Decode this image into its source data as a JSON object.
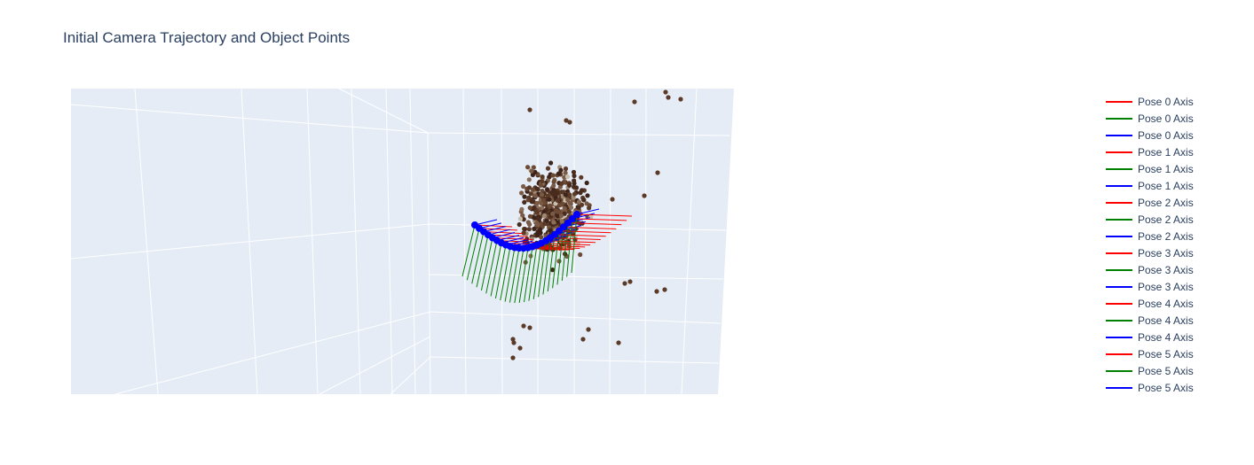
{
  "chart_data": {
    "type": "scatter",
    "subtype": "3d",
    "title": "Initial Camera Trajectory and Object Points",
    "scene_background": "#e5ecf6",
    "grid": true,
    "legend_placement": "right",
    "series": [
      {
        "name": "Pose 0 Axis",
        "color": "#ff0000"
      },
      {
        "name": "Pose 0 Axis",
        "color": "#008000"
      },
      {
        "name": "Pose 0 Axis",
        "color": "#0000ff"
      },
      {
        "name": "Pose 1 Axis",
        "color": "#ff0000"
      },
      {
        "name": "Pose 1 Axis",
        "color": "#008000"
      },
      {
        "name": "Pose 1 Axis",
        "color": "#0000ff"
      },
      {
        "name": "Pose 2 Axis",
        "color": "#ff0000"
      },
      {
        "name": "Pose 2 Axis",
        "color": "#008000"
      },
      {
        "name": "Pose 2 Axis",
        "color": "#0000ff"
      },
      {
        "name": "Pose 3 Axis",
        "color": "#ff0000"
      },
      {
        "name": "Pose 3 Axis",
        "color": "#008000"
      },
      {
        "name": "Pose 3 Axis",
        "color": "#0000ff"
      },
      {
        "name": "Pose 4 Axis",
        "color": "#ff0000"
      },
      {
        "name": "Pose 4 Axis",
        "color": "#008000"
      },
      {
        "name": "Pose 4 Axis",
        "color": "#0000ff"
      },
      {
        "name": "Pose 5 Axis",
        "color": "#ff0000"
      },
      {
        "name": "Pose 5 Axis",
        "color": "#008000"
      },
      {
        "name": "Pose 5 Axis",
        "color": "#0000ff"
      }
    ],
    "point_colors": [
      "#4a2c1f",
      "#5c3a28",
      "#6b4a36",
      "#3d241a",
      "#7a5a44",
      "#8b6e58",
      "#a08a74",
      "#c9bfae"
    ]
  }
}
